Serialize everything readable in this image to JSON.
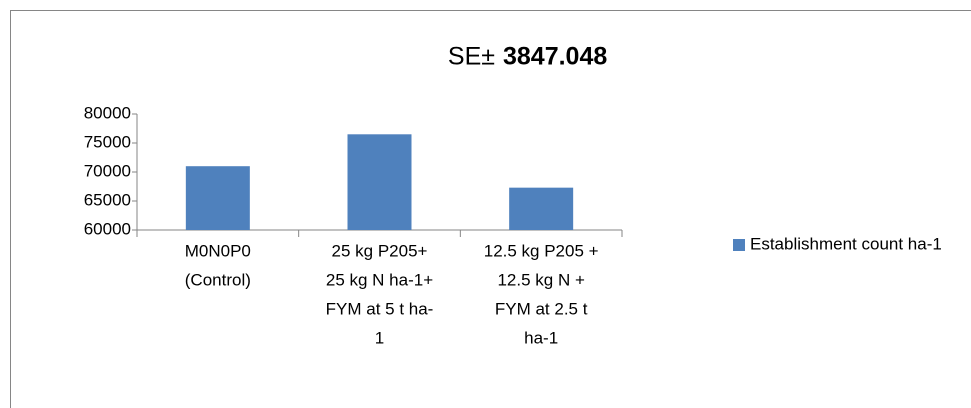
{
  "chart_data": {
    "type": "bar",
    "title": "SE±",
    "title_bold": "3847.048",
    "categories": [
      [
        "M0N0P0",
        "(Control)"
      ],
      [
        "25 kg P205+",
        "25 kg N ha-1+",
        "FYM at 5 t ha-",
        "1"
      ],
      [
        "12.5 kg P205 +",
        "12.5 kg N +",
        "FYM at 2.5 t",
        "ha-1"
      ]
    ],
    "series": [
      {
        "name": "Establishment count ha-1",
        "color": "#4f81bd",
        "values": [
          71000,
          76500,
          67300
        ]
      }
    ],
    "ylim": [
      60000,
      80000
    ],
    "yticks": [
      60000,
      65000,
      70000,
      75000,
      80000
    ],
    "grid": false,
    "legend": "right"
  }
}
